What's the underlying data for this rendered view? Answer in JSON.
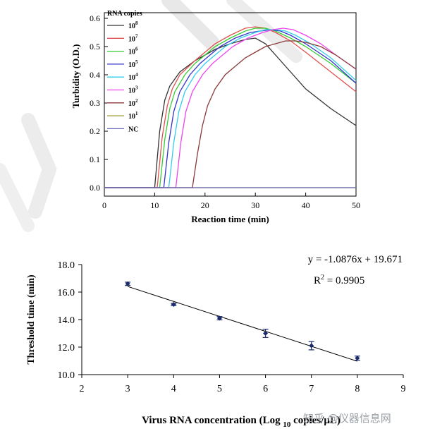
{
  "chart_data": [
    {
      "type": "line",
      "title": "",
      "xlabel": "Reaction time (min)",
      "ylabel": "Turbidity (O.D.)",
      "xlim": [
        0,
        50
      ],
      "ylim": [
        -0.03,
        0.62
      ],
      "xticks": [
        0,
        10,
        20,
        30,
        40,
        50
      ],
      "yticks": [
        0.0,
        0.1,
        0.2,
        0.3,
        0.4,
        0.5,
        0.6
      ],
      "ytick_labels": [
        "0.0",
        "0.1",
        "0.2",
        "0.3",
        "0.4",
        "0.5",
        "0.6"
      ],
      "grid": false,
      "legend_position": "top-left",
      "legend_title": "RNA copies",
      "series": [
        {
          "name": "10^8",
          "label_base": "10",
          "label_exp": "8",
          "color": "#333333",
          "x": [
            0,
            10,
            11,
            12,
            13,
            15,
            18,
            20,
            22,
            25,
            28,
            30,
            32,
            34,
            37,
            40,
            45,
            50
          ],
          "y": [
            0,
            0,
            0.2,
            0.31,
            0.36,
            0.41,
            0.45,
            0.47,
            0.49,
            0.51,
            0.525,
            0.53,
            0.51,
            0.47,
            0.41,
            0.35,
            0.28,
            0.22
          ]
        },
        {
          "name": "10^7",
          "label_base": "10",
          "label_exp": "7",
          "color": "#e05050",
          "x": [
            0,
            10.5,
            11.5,
            12.5,
            13.5,
            15,
            18,
            20,
            22,
            25,
            28,
            30,
            32,
            34,
            37,
            40,
            45,
            50
          ],
          "y": [
            0,
            0,
            0.18,
            0.29,
            0.35,
            0.4,
            0.45,
            0.48,
            0.51,
            0.54,
            0.565,
            0.57,
            0.565,
            0.55,
            0.52,
            0.48,
            0.41,
            0.34
          ]
        },
        {
          "name": "10^6",
          "label_base": "10",
          "label_exp": "6",
          "color": "#33cc33",
          "x": [
            0,
            11,
            12,
            13,
            14,
            16,
            18,
            20,
            22,
            25,
            28,
            30,
            32,
            34,
            37,
            40,
            45,
            50
          ],
          "y": [
            0,
            0,
            0.17,
            0.28,
            0.34,
            0.4,
            0.44,
            0.47,
            0.5,
            0.53,
            0.555,
            0.565,
            0.565,
            0.555,
            0.53,
            0.5,
            0.44,
            0.37
          ]
        },
        {
          "name": "10^5",
          "label_base": "10",
          "label_exp": "5",
          "color": "#3333cc",
          "x": [
            0,
            11.8,
            12.8,
            13.8,
            15,
            17,
            19,
            21,
            23,
            26,
            29,
            31,
            33,
            35,
            37,
            40,
            45,
            50
          ],
          "y": [
            0,
            0,
            0.16,
            0.27,
            0.34,
            0.4,
            0.44,
            0.47,
            0.5,
            0.53,
            0.55,
            0.555,
            0.56,
            0.555,
            0.54,
            0.51,
            0.45,
            0.37
          ]
        },
        {
          "name": "10^4",
          "label_base": "10",
          "label_exp": "4",
          "color": "#33ccee",
          "x": [
            0,
            12.8,
            13.8,
            14.8,
            16,
            18,
            20,
            22,
            24,
            27,
            30,
            32,
            34,
            36,
            38,
            41,
            45,
            50
          ],
          "y": [
            0,
            0,
            0.16,
            0.27,
            0.34,
            0.4,
            0.44,
            0.47,
            0.5,
            0.53,
            0.55,
            0.56,
            0.56,
            0.555,
            0.54,
            0.51,
            0.46,
            0.38
          ]
        },
        {
          "name": "10^3",
          "label_base": "10",
          "label_exp": "3",
          "color": "#ee44ee",
          "x": [
            0,
            14.2,
            15.2,
            16.2,
            17.5,
            19.5,
            21.5,
            23.5,
            25.5,
            28.5,
            31.5,
            33.5,
            35.5,
            37.5,
            40,
            43,
            46,
            50
          ],
          "y": [
            0,
            0,
            0.16,
            0.27,
            0.34,
            0.4,
            0.44,
            0.47,
            0.5,
            0.53,
            0.55,
            0.56,
            0.565,
            0.56,
            0.54,
            0.51,
            0.47,
            0.42
          ]
        },
        {
          "name": "10^2",
          "label_base": "10",
          "label_exp": "2",
          "color": "#8b3a3a",
          "x": [
            0,
            17.5,
            18.5,
            19.5,
            20.5,
            22,
            24,
            26,
            28,
            30,
            32,
            34,
            36,
            38,
            40,
            43,
            46,
            50
          ],
          "y": [
            0,
            0,
            0.12,
            0.22,
            0.29,
            0.35,
            0.4,
            0.43,
            0.46,
            0.48,
            0.5,
            0.51,
            0.52,
            0.52,
            0.515,
            0.5,
            0.47,
            0.42
          ]
        },
        {
          "name": "10^1",
          "label_base": "10",
          "label_exp": "1",
          "color": "#999933",
          "x": [
            0,
            50
          ],
          "y": [
            0,
            0
          ]
        },
        {
          "name": "NC",
          "label_base": "NC",
          "label_exp": "",
          "color": "#6666bb",
          "x": [
            0,
            50
          ],
          "y": [
            0,
            0
          ]
        }
      ]
    },
    {
      "type": "scatter",
      "title": "",
      "xlabel_main": "Virus RNA concentration (Log",
      "xlabel_sub": "10",
      "xlabel_tail": " copies/μL)",
      "ylabel": "Threshold time (min)",
      "xlim": [
        2,
        9
      ],
      "ylim": [
        10,
        18
      ],
      "xticks": [
        2,
        3,
        4,
        5,
        6,
        7,
        8,
        9
      ],
      "yticks": [
        10,
        12,
        14,
        16,
        18
      ],
      "ytick_labels": [
        "10.0",
        "12.0",
        "14.0",
        "16.0",
        "18.0"
      ],
      "grid": false,
      "points": [
        {
          "x": 3,
          "y": 16.6,
          "err": 0.12
        },
        {
          "x": 4,
          "y": 15.1,
          "err": 0.08
        },
        {
          "x": 5,
          "y": 14.1,
          "err": 0.12
        },
        {
          "x": 6,
          "y": 13.0,
          "err": 0.3
        },
        {
          "x": 7,
          "y": 12.1,
          "err": 0.3
        },
        {
          "x": 8,
          "y": 11.2,
          "err": 0.15
        }
      ],
      "trendline": {
        "slope": -1.0876,
        "intercept": 19.671,
        "x_range": [
          3,
          8
        ]
      },
      "equation": "y = -1.0876x + 19.671",
      "r2_label": "R",
      "r2_exp": "2",
      "r2_value": " = 0.9905",
      "point_color": "#1a2a6a"
    }
  ],
  "watermark": "知乎 @仪器信息网"
}
